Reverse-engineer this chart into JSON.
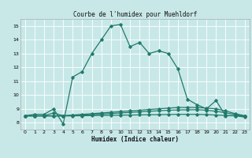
{
  "title": "Courbe de l'humidex pour Muehldorf",
  "xlabel": "Humidex (Indice chaleur)",
  "xlim": [
    -0.5,
    23.5
  ],
  "ylim": [
    7.5,
    15.5
  ],
  "yticks": [
    8,
    9,
    10,
    11,
    12,
    13,
    14,
    15
  ],
  "xticks": [
    0,
    1,
    2,
    3,
    4,
    5,
    6,
    7,
    8,
    9,
    10,
    11,
    12,
    13,
    14,
    15,
    16,
    17,
    18,
    19,
    20,
    21,
    22,
    23
  ],
  "bg_color": "#c8e8e8",
  "line_color": "#217a6a",
  "grid_color": "#ffffff",
  "line1_x": [
    0,
    1,
    2,
    3,
    4,
    5,
    6,
    7,
    8,
    9,
    10,
    11,
    12,
    13,
    14,
    15,
    16,
    17,
    18,
    19,
    20,
    21,
    22,
    23
  ],
  "line1_y": [
    8.5,
    8.6,
    8.6,
    9.0,
    7.9,
    11.3,
    11.7,
    13.0,
    14.0,
    15.0,
    15.1,
    13.5,
    13.8,
    13.0,
    13.2,
    13.0,
    11.9,
    9.7,
    9.3,
    9.0,
    9.6,
    8.5,
    8.5,
    8.4
  ],
  "line2_x": [
    0,
    1,
    2,
    3,
    4,
    5,
    6,
    7,
    8,
    9,
    10,
    11,
    12,
    13,
    14,
    15,
    16,
    17,
    18,
    19,
    20,
    21,
    22,
    23
  ],
  "line2_y": [
    8.5,
    8.5,
    8.5,
    8.7,
    8.5,
    8.55,
    8.6,
    8.65,
    8.7,
    8.75,
    8.8,
    8.85,
    8.9,
    8.95,
    9.0,
    9.05,
    9.1,
    9.1,
    9.1,
    9.05,
    9.0,
    8.85,
    8.65,
    8.5
  ],
  "line3_x": [
    0,
    1,
    2,
    3,
    4,
    5,
    6,
    7,
    8,
    9,
    10,
    11,
    12,
    13,
    14,
    15,
    16,
    17,
    18,
    19,
    20,
    21,
    22,
    23
  ],
  "line3_y": [
    8.5,
    8.5,
    8.5,
    8.5,
    8.5,
    8.52,
    8.55,
    8.58,
    8.62,
    8.66,
    8.7,
    8.74,
    8.78,
    8.82,
    8.86,
    8.9,
    8.92,
    8.93,
    8.94,
    8.9,
    8.82,
    8.72,
    8.58,
    8.48
  ],
  "line4_x": [
    0,
    1,
    2,
    3,
    4,
    5,
    6,
    7,
    8,
    9,
    10,
    11,
    12,
    13,
    14,
    15,
    16,
    17,
    18,
    19,
    20,
    21,
    22,
    23
  ],
  "line4_y": [
    8.48,
    8.48,
    8.48,
    8.48,
    8.48,
    8.49,
    8.5,
    8.51,
    8.52,
    8.53,
    8.54,
    8.55,
    8.56,
    8.57,
    8.58,
    8.59,
    8.6,
    8.6,
    8.6,
    8.58,
    8.55,
    8.52,
    8.5,
    8.46
  ]
}
